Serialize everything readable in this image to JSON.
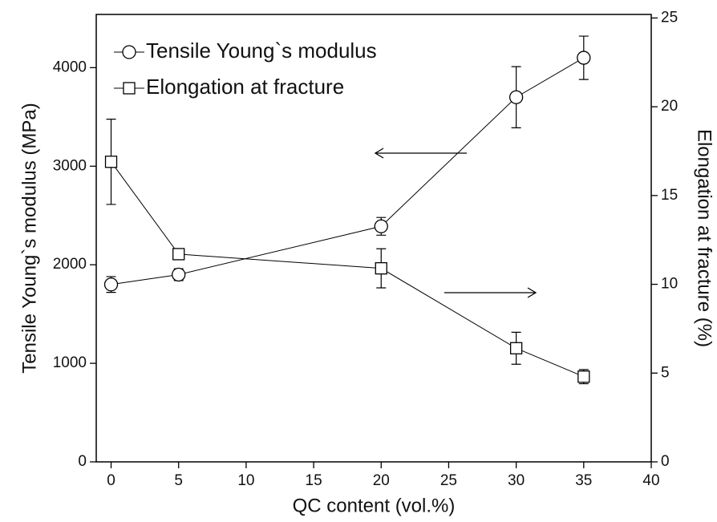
{
  "chart_data": {
    "type": "line",
    "x_label": "QC content (vol.%)",
    "y_label": "Tensile Young`s modulus (MPa)",
    "y2_label": "Elongation at fracture (%)",
    "x": [
      0,
      5,
      20,
      30,
      35
    ],
    "series": [
      {
        "name": "Tensile Young`s modulus",
        "color": "#000000",
        "marker": "circle",
        "values": [
          1800,
          1900,
          2390,
          3700,
          4100
        ],
        "errors": [
          80,
          60,
          90,
          310,
          220
        ]
      },
      {
        "name": "Elongation at fracture",
        "color": "#000000",
        "marker": "square",
        "axis": "y2",
        "values": [
          16.9,
          11.7,
          10.9,
          6.4,
          4.8
        ],
        "errors": [
          2.4,
          0.1,
          1.1,
          0.9,
          0.4
        ]
      }
    ],
    "xlim": [
      -1.1,
      40
    ],
    "xticks": [
      0,
      5,
      10,
      15,
      20,
      25,
      30,
      35,
      40
    ],
    "ylim": [
      0,
      4540
    ],
    "yticks": [
      0,
      1000,
      2000,
      3000,
      4000
    ],
    "y2lim": [
      0,
      25.2
    ],
    "y2ticks": [
      0,
      5,
      10,
      15,
      20,
      25
    ],
    "legend": "upper left"
  }
}
